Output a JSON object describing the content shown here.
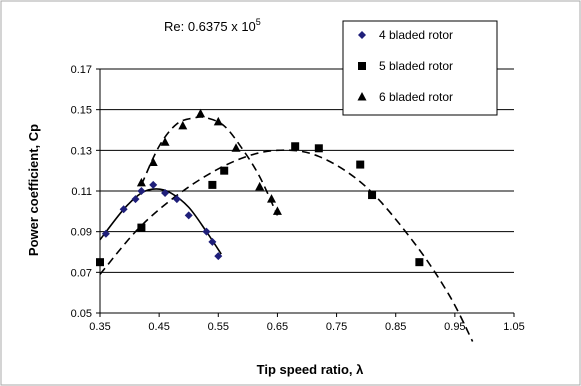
{
  "chart_data": {
    "type": "scatter",
    "annotation": {
      "prefix": "Re: 0.6375  x 10",
      "superscript": "5"
    },
    "xlabel": "Tip speed ratio, λ",
    "ylabel": "Power coefficient, Cp",
    "xlim": [
      0.35,
      1.05
    ],
    "ylim": [
      0.05,
      0.17
    ],
    "xticks": [
      0.35,
      0.45,
      0.55,
      0.65,
      0.75,
      0.85,
      0.95,
      1.05
    ],
    "yticks": [
      0.05,
      0.07,
      0.09,
      0.11,
      0.13,
      0.15,
      0.17
    ],
    "xtick_labels": [
      "0.35",
      "0.45",
      "0.55",
      "0.65",
      "0.75",
      "0.85",
      "0.95",
      "1.05"
    ],
    "ytick_labels": [
      "0.05",
      "0.07",
      "0.09",
      "0.11",
      "0.13",
      "0.15",
      "0.17"
    ],
    "grid": "horizontal",
    "legend_position": "top-right",
    "series": [
      {
        "name": "4 bladed rotor",
        "marker": "diamond",
        "color": "#1f1f7a",
        "fit_style": "solid",
        "x": [
          0.36,
          0.39,
          0.41,
          0.42,
          0.44,
          0.46,
          0.48,
          0.5,
          0.53,
          0.54,
          0.55
        ],
        "y": [
          0.089,
          0.101,
          0.106,
          0.11,
          0.113,
          0.109,
          0.106,
          0.098,
          0.09,
          0.085,
          0.078
        ],
        "fit": {
          "x": [
            0.35,
            0.39,
            0.42,
            0.445,
            0.47,
            0.5,
            0.53,
            0.555
          ],
          "y": [
            0.086,
            0.101,
            0.109,
            0.111,
            0.109,
            0.102,
            0.09,
            0.079
          ]
        }
      },
      {
        "name": "5 bladed rotor",
        "marker": "square",
        "color": "#000000",
        "fit_style": "dashed",
        "x": [
          0.35,
          0.42,
          0.54,
          0.56,
          0.68,
          0.72,
          0.79,
          0.81,
          0.89
        ],
        "y": [
          0.075,
          0.092,
          0.113,
          0.12,
          0.132,
          0.131,
          0.123,
          0.108,
          0.075
        ],
        "fit": {
          "x": [
            0.35,
            0.42,
            0.5,
            0.58,
            0.65,
            0.72,
            0.8,
            0.88,
            0.94,
            0.98
          ],
          "y": [
            0.069,
            0.093,
            0.112,
            0.125,
            0.13,
            0.127,
            0.112,
            0.085,
            0.059,
            0.036
          ]
        }
      },
      {
        "name": "6 bladed rotor",
        "marker": "triangle",
        "color": "#000000",
        "fit_style": "dashed",
        "x": [
          0.42,
          0.44,
          0.46,
          0.49,
          0.52,
          0.55,
          0.58,
          0.62,
          0.64,
          0.65
        ],
        "y": [
          0.114,
          0.124,
          0.134,
          0.142,
          0.148,
          0.144,
          0.131,
          0.112,
          0.106,
          0.1
        ],
        "fit": {
          "x": [
            0.42,
            0.45,
            0.48,
            0.51,
            0.53,
            0.56,
            0.59,
            0.62,
            0.65
          ],
          "y": [
            0.113,
            0.132,
            0.143,
            0.146,
            0.146,
            0.142,
            0.131,
            0.117,
            0.098
          ]
        }
      }
    ]
  }
}
